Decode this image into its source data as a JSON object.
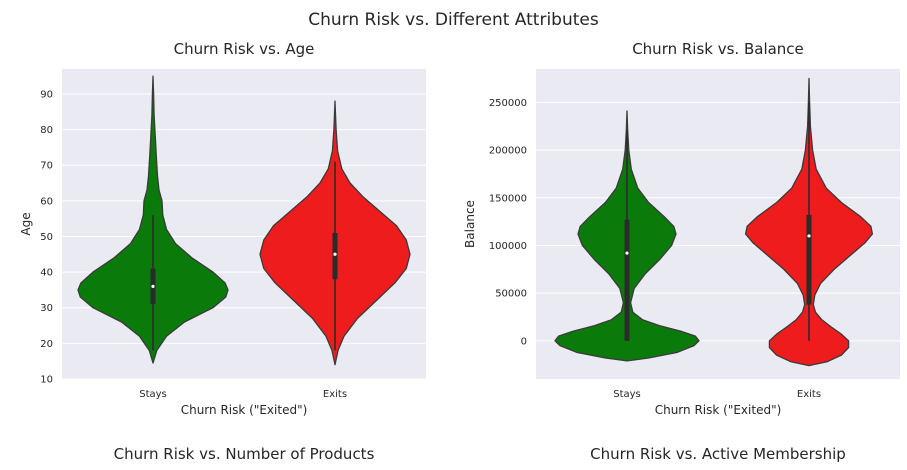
{
  "suptitle": "Churn Risk vs. Different Attributes",
  "bottom_titles": [
    "Churn Risk vs. Number of Products",
    "Churn Risk vs. Active Membership"
  ],
  "colors": {
    "stays": "#0a7a0a",
    "exits": "#ee1c1c",
    "plot_bg": "#eaeaf2",
    "grid": "#ffffff",
    "edge": "#3a3a3a"
  },
  "chart_data": [
    {
      "type": "violin",
      "title": "Churn Risk vs. Age",
      "xlabel": "Churn Risk (\"Exited\")",
      "ylabel": "Age",
      "categories": [
        "Stays",
        "Exits"
      ],
      "ylim": [
        10,
        97
      ],
      "yticks": [
        10,
        20,
        30,
        40,
        50,
        60,
        70,
        80,
        90
      ],
      "yticklabels": [
        "10",
        "20",
        "30",
        "40",
        "50",
        "60",
        "70",
        "80",
        "90"
      ],
      "series": [
        {
          "category": "Stays",
          "color": "#0a7a0a",
          "min": 14.5,
          "q1": 31,
          "median": 36,
          "q3": 41,
          "max": 95,
          "whisker_low": 18,
          "whisker_high": 56,
          "profile": [
            [
              14.5,
              0
            ],
            [
              18,
              0.05
            ],
            [
              22,
              0.18
            ],
            [
              26,
              0.42
            ],
            [
              30,
              0.8
            ],
            [
              33,
              0.97
            ],
            [
              35,
              1.0
            ],
            [
              37,
              0.96
            ],
            [
              40,
              0.8
            ],
            [
              44,
              0.52
            ],
            [
              48,
              0.3
            ],
            [
              52,
              0.18
            ],
            [
              56,
              0.13
            ],
            [
              60,
              0.12
            ],
            [
              63,
              0.08
            ],
            [
              67,
              0.06
            ],
            [
              72,
              0.045
            ],
            [
              78,
              0.03
            ],
            [
              84,
              0.015
            ],
            [
              90,
              0.008
            ],
            [
              95,
              0
            ]
          ]
        },
        {
          "category": "Exits",
          "color": "#ee1c1c",
          "min": 14,
          "q1": 38,
          "median": 45,
          "q3": 51,
          "max": 88,
          "whisker_low": 18,
          "whisker_high": 71,
          "profile": [
            [
              14,
              0
            ],
            [
              18,
              0.04
            ],
            [
              22,
              0.12
            ],
            [
              27,
              0.3
            ],
            [
              32,
              0.55
            ],
            [
              37,
              0.8
            ],
            [
              41,
              0.95
            ],
            [
              45,
              1.0
            ],
            [
              49,
              0.95
            ],
            [
              53,
              0.82
            ],
            [
              57,
              0.6
            ],
            [
              61,
              0.38
            ],
            [
              65,
              0.2
            ],
            [
              69,
              0.09
            ],
            [
              74,
              0.035
            ],
            [
              80,
              0.015
            ],
            [
              88,
              0
            ]
          ]
        }
      ]
    },
    {
      "type": "violin",
      "title": "Churn Risk vs. Balance",
      "xlabel": "Churn Risk (\"Exited\")",
      "ylabel": "Balance",
      "categories": [
        "Stays",
        "Exits"
      ],
      "ylim": [
        -40000,
        285000
      ],
      "yticks": [
        0,
        50000,
        100000,
        150000,
        200000,
        250000
      ],
      "yticklabels": [
        "0",
        "50000",
        "100000",
        "150000",
        "200000",
        "250000"
      ],
      "series": [
        {
          "category": "Stays",
          "color": "#0a7a0a",
          "min": -21000,
          "q1": 0,
          "median": 92000,
          "q3": 127000,
          "max": 241000,
          "whisker_low": 0,
          "whisker_high": 221000,
          "profile": [
            [
              -21000,
              0
            ],
            [
              -18000,
              0.3
            ],
            [
              -12000,
              0.7
            ],
            [
              -5000,
              0.93
            ],
            [
              0,
              1.0
            ],
            [
              5000,
              0.95
            ],
            [
              10000,
              0.75
            ],
            [
              16000,
              0.45
            ],
            [
              22000,
              0.22
            ],
            [
              30000,
              0.08
            ],
            [
              40000,
              0.05
            ],
            [
              55000,
              0.1
            ],
            [
              70000,
              0.25
            ],
            [
              85000,
              0.45
            ],
            [
              100000,
              0.62
            ],
            [
              112000,
              0.68
            ],
            [
              120000,
              0.65
            ],
            [
              130000,
              0.52
            ],
            [
              145000,
              0.3
            ],
            [
              160000,
              0.15
            ],
            [
              180000,
              0.06
            ],
            [
              200000,
              0.025
            ],
            [
              220000,
              0.01
            ],
            [
              241000,
              0
            ]
          ]
        },
        {
          "category": "Exits",
          "color": "#ee1c1c",
          "min": -26000,
          "q1": 38000,
          "median": 110000,
          "q3": 132000,
          "max": 275000,
          "whisker_low": 0,
          "whisker_high": 250000,
          "profile": [
            [
              -26000,
              0
            ],
            [
              -22000,
              0.25
            ],
            [
              -15000,
              0.45
            ],
            [
              -7000,
              0.55
            ],
            [
              0,
              0.55
            ],
            [
              7000,
              0.45
            ],
            [
              15000,
              0.3
            ],
            [
              22000,
              0.18
            ],
            [
              30000,
              0.09
            ],
            [
              38000,
              0.06
            ],
            [
              48000,
              0.08
            ],
            [
              60000,
              0.16
            ],
            [
              75000,
              0.35
            ],
            [
              90000,
              0.58
            ],
            [
              103000,
              0.78
            ],
            [
              112000,
              0.88
            ],
            [
              120000,
              0.86
            ],
            [
              130000,
              0.72
            ],
            [
              145000,
              0.45
            ],
            [
              160000,
              0.24
            ],
            [
              180000,
              0.1
            ],
            [
              200000,
              0.05
            ],
            [
              225000,
              0.02
            ],
            [
              250000,
              0.008
            ],
            [
              275000,
              0
            ]
          ]
        }
      ]
    }
  ]
}
